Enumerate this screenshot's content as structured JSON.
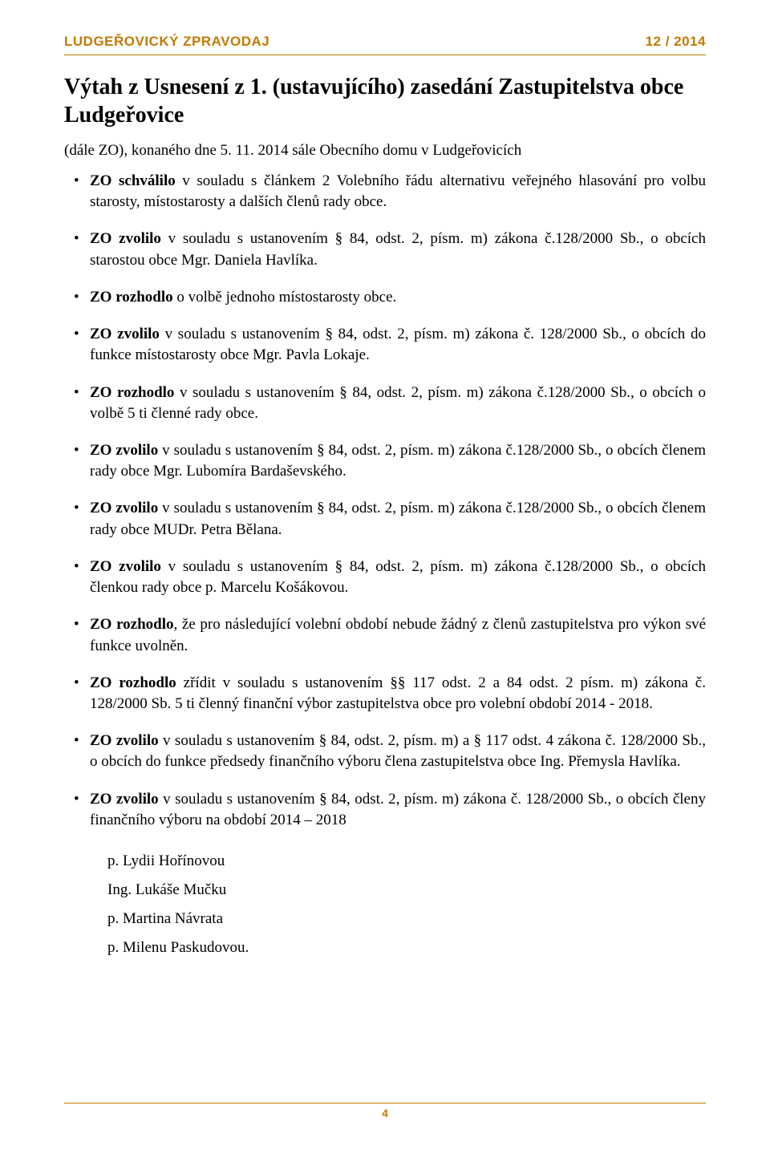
{
  "header": {
    "left": "LUDGEŘOVICKÝ ZPRAVODAJ",
    "right": "12 / 2014"
  },
  "title": "Výtah z Usnesení z 1. (ustavujícího) zasedání Zastupitelstva obce Ludgeřovice",
  "subtitle": "(dále ZO), konaného dne 5. 11. 2014 sále Obecního domu v Ludgeřovicích",
  "items": [
    {
      "prefix": "ZO schválilo",
      "rest": " v souladu s článkem 2 Volebního řádu alternativu veřejného hlasování pro volbu starosty, místostarosty a dalších členů rady obce."
    },
    {
      "prefix": "ZO zvolilo",
      "rest": " v souladu s ustanovením § 84, odst. 2, písm. m) zákona č.128/2000 Sb., o obcích starostou obce Mgr. Daniela Havlíka."
    },
    {
      "prefix": "ZO rozhodlo",
      "rest": " o volbě jednoho místostarosty obce."
    },
    {
      "prefix": "ZO zvolilo",
      "rest": " v souladu s ustanovením § 84, odst. 2, písm. m) zákona č. 128/2000 Sb., o obcích do funkce místostarosty obce Mgr. Pavla Lokaje."
    },
    {
      "prefix": "ZO rozhodlo",
      "rest": " v souladu s ustanovením § 84, odst. 2, písm. m) zákona č.128/2000 Sb., o obcích o volbě 5 ti členné rady obce."
    },
    {
      "prefix": "ZO zvolilo",
      "rest": " v souladu s ustanovením § 84, odst. 2, písm. m) zákona č.128/2000 Sb., o obcích členem rady obce Mgr. Lubomíra Bardaševského."
    },
    {
      "prefix": "ZO zvolilo",
      "rest": " v souladu s ustanovením § 84, odst. 2, písm. m) zákona č.128/2000 Sb., o obcích členem rady obce MUDr. Petra Bělana."
    },
    {
      "prefix": "ZO zvolilo",
      "rest": " v souladu s ustanovením § 84, odst. 2, písm. m) zákona č.128/2000 Sb., o obcích členkou rady obce p. Marcelu Košákovou."
    },
    {
      "prefix": "ZO rozhodlo",
      "rest": ", že pro následující volební období nebude žádný z členů zastupitelstva pro výkon své funkce uvolněn."
    },
    {
      "prefix": "ZO rozhodlo",
      "rest": " zřídit v souladu s ustanovením §§ 117 odst. 2 a 84 odst. 2 písm. m) zákona č. 128/2000 Sb. 5 ti členný finanční výbor zastupitelstva obce pro volební období 2014 - 2018."
    },
    {
      "prefix": "ZO zvolilo",
      "rest": " v souladu s ustanovením § 84, odst. 2, písm. m) a § 117 odst. 4 zákona č. 128/2000 Sb., o obcích do funkce předsedy finančního výboru člena zastupitelstva obce Ing. Přemysla Havlíka."
    },
    {
      "prefix": "ZO zvolilo",
      "rest": " v souladu s ustanovením § 84, odst. 2, písm. m) zákona č. 128/2000 Sb., o obcích členy finančního výboru na období 2014 – 2018"
    }
  ],
  "names": [
    "p. Lydii Hořínovou",
    "Ing. Lukáše Mučku",
    "p. Martina Návrata",
    "p. Milenu Paskudovou."
  ],
  "pageNumber": "4",
  "colors": {
    "accent": "#c17a00",
    "text": "#000000",
    "background": "#ffffff"
  }
}
